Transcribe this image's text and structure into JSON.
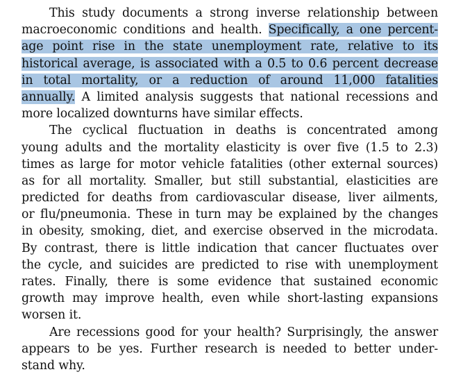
{
  "document": {
    "highlight_color": "#a9c6e3",
    "paragraphs": [
      {
        "lines": [
          {
            "pre": "This study documents a strong inverse relationship between",
            "hl": "",
            "post": ""
          },
          {
            "pre": "macroeconomic conditions and health. ",
            "hl": "Specifically, a one percent-",
            "post": ""
          },
          {
            "pre": "",
            "hl": "age point rise in the state unemployment rate, relative to its",
            "post": ""
          },
          {
            "pre": "",
            "hl": "historical average, is associated with a 0.5 to 0.6 percent decrease",
            "post": ""
          },
          {
            "pre": "",
            "hl": "in total mortality, or a reduction of around 11,000 fatalities",
            "post": ""
          },
          {
            "pre": "",
            "hl": "annually.",
            "post": " A limited analysis suggests that national recessions and"
          },
          {
            "pre": "more localized downturns have similar effects.",
            "hl": "",
            "post": ""
          }
        ]
      },
      {
        "lines": [
          {
            "pre": "The cyclical fluctuation in deaths is concentrated among",
            "hl": "",
            "post": ""
          },
          {
            "pre": "young adults and the mortality elasticity is over five (1.5 to 2.3)",
            "hl": "",
            "post": ""
          },
          {
            "pre": "times as large for motor vehicle fatalities (other external sources)",
            "hl": "",
            "post": ""
          },
          {
            "pre": "as for all mortality. Smaller, but still substantial, elasticities are",
            "hl": "",
            "post": ""
          },
          {
            "pre": "predicted for deaths from cardiovascular disease, liver ailments,",
            "hl": "",
            "post": ""
          },
          {
            "pre": "or flu/pneumonia. These in turn may be explained by the changes",
            "hl": "",
            "post": ""
          },
          {
            "pre": "in obesity, smoking, diet, and exercise observed in the microdata.",
            "hl": "",
            "post": ""
          },
          {
            "pre": "By contrast, there is little indication that cancer fluctuates over",
            "hl": "",
            "post": ""
          },
          {
            "pre": "the cycle, and suicides are predicted to rise with unemployment",
            "hl": "",
            "post": ""
          },
          {
            "pre": "rates. Finally, there is some evidence that sustained economic",
            "hl": "",
            "post": ""
          },
          {
            "pre": "growth may improve health, even while short-lasting expansions",
            "hl": "",
            "post": ""
          },
          {
            "pre": "worsen it.",
            "hl": "",
            "post": ""
          }
        ]
      },
      {
        "lines": [
          {
            "pre": "Are recessions good for your health? Surprisingly, the answer",
            "hl": "",
            "post": ""
          },
          {
            "pre": "appears to be yes. Further research is needed to better under-",
            "hl": "",
            "post": ""
          },
          {
            "pre": "stand why.",
            "hl": "",
            "post": ""
          }
        ]
      }
    ]
  }
}
